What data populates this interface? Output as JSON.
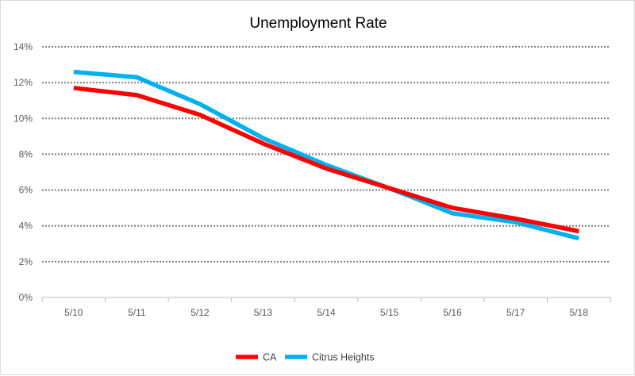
{
  "chart_data": {
    "type": "line",
    "title": "Unemployment Rate",
    "xlabel": "",
    "ylabel": "",
    "categories": [
      "5/10",
      "5/11",
      "5/12",
      "5/13",
      "5/14",
      "5/15",
      "5/16",
      "5/17",
      "5/18"
    ],
    "yticks": [
      0,
      2,
      4,
      6,
      8,
      10,
      12,
      14
    ],
    "ytick_labels": [
      "0%",
      "2%",
      "4%",
      "6%",
      "8%",
      "10%",
      "12%",
      "14%"
    ],
    "ylim": [
      0,
      14
    ],
    "grid": "horizontal dotted",
    "legend_position": "bottom",
    "series": [
      {
        "name": "CA",
        "color": "#ff0000",
        "values": [
          11.7,
          11.3,
          10.2,
          8.6,
          7.2,
          6.1,
          5.0,
          4.4,
          3.7
        ]
      },
      {
        "name": "Citrus Heights",
        "color": "#00b0f0",
        "values": [
          12.6,
          12.3,
          10.8,
          8.9,
          7.4,
          6.1,
          4.7,
          4.2,
          3.3
        ]
      }
    ]
  }
}
